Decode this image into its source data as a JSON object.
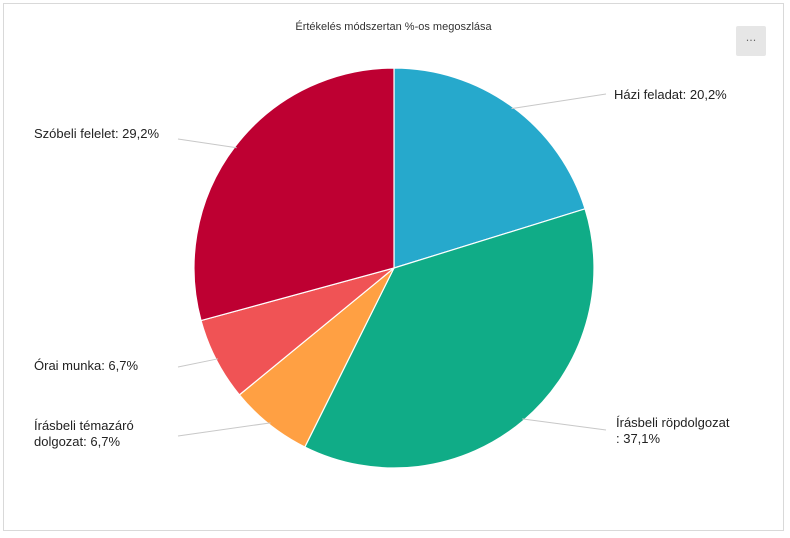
{
  "chart_data": {
    "type": "pie",
    "title": "Értékelés módszertan %-os megoszlása",
    "slices": [
      {
        "label": "Házi feladat",
        "display": "Házi feladat: 20,2%",
        "value": 20.2,
        "color": "#26A9CC"
      },
      {
        "label": "Írásbeli röpdolgozat",
        "display": "Írásbeli röpdolgozat\n: 37,1%",
        "value": 37.1,
        "color": "#10AC87"
      },
      {
        "label": "Írásbeli témazáró dolgozat",
        "display": "Írásbeli témazáró\ndolgozat: 6,7%",
        "value": 6.7,
        "color": "#FFA043"
      },
      {
        "label": "Órai munka",
        "display": "Órai munka: 6,7%",
        "value": 6.7,
        "color": "#F05355"
      },
      {
        "label": "Szóbeli felelet",
        "display": "Szóbeli felelet: 29,2%",
        "value": 29.2,
        "color": "#BE0032"
      }
    ]
  },
  "menu": {
    "label": "···"
  }
}
